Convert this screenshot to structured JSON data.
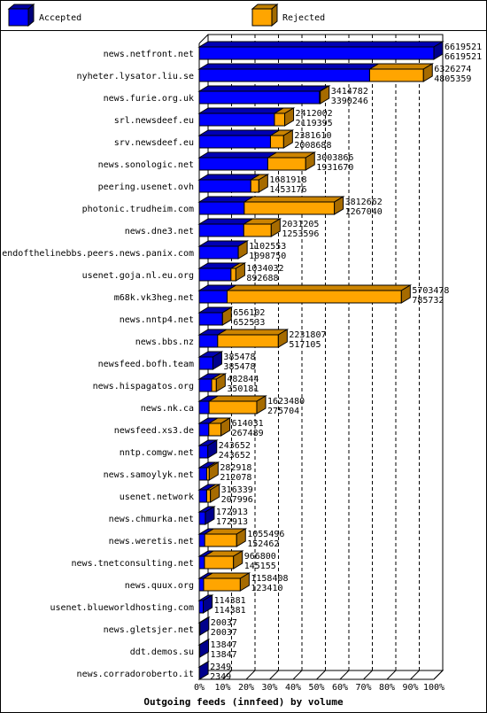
{
  "chart_data": {
    "type": "bar",
    "orientation": "horizontal",
    "stacked": true,
    "title": "Outgoing feeds (innfeed) by volume",
    "legend": [
      {
        "name": "Accepted",
        "color": "#0000ff"
      },
      {
        "name": "Rejected",
        "color": "#ffa500"
      }
    ],
    "x_ticks": [
      "0%",
      "10%",
      "20%",
      "30%",
      "40%",
      "50%",
      "60%",
      "70%",
      "80%",
      "90%",
      "100%"
    ],
    "xlim": [
      0,
      6619521
    ],
    "grid": true,
    "categories": [
      {
        "name": "news.netfront.net",
        "offered": 6619521,
        "accepted": 6619521
      },
      {
        "name": "nyheter.lysator.liu.se",
        "offered": 6326274,
        "accepted": 4805359
      },
      {
        "name": "news.furie.org.uk",
        "offered": 3414782,
        "accepted": 3390246
      },
      {
        "name": "srl.newsdeef.eu",
        "offered": 2412002,
        "accepted": 2119395
      },
      {
        "name": "srv.newsdeef.eu",
        "offered": 2381610,
        "accepted": 2008688
      },
      {
        "name": "news.sonologic.net",
        "offered": 3003866,
        "accepted": 1931670
      },
      {
        "name": "peering.usenet.ovh",
        "offered": 1681918,
        "accepted": 1453176
      },
      {
        "name": "photonic.trudheim.com",
        "offered": 3812662,
        "accepted": 1267040
      },
      {
        "name": "news.dne3.net",
        "offered": 2031205,
        "accepted": 1253596
      },
      {
        "name": "endofthelinebbs.peers.news.panix.com",
        "offered": 1102553,
        "accepted": 1098750
      },
      {
        "name": "usenet.goja.nl.eu.org",
        "offered": 1034032,
        "accepted": 892688
      },
      {
        "name": "m68k.vk3heg.net",
        "offered": 5703478,
        "accepted": 785732
      },
      {
        "name": "news.nntp4.net",
        "offered": 656102,
        "accepted": 652533
      },
      {
        "name": "news.bbs.nz",
        "offered": 2231807,
        "accepted": 517105
      },
      {
        "name": "newsfeed.bofh.team",
        "offered": 385478,
        "accepted": 385478
      },
      {
        "name": "news.hispagatos.org",
        "offered": 482844,
        "accepted": 350181
      },
      {
        "name": "news.nk.ca",
        "offered": 1623480,
        "accepted": 275704
      },
      {
        "name": "newsfeed.xs3.de",
        "offered": 614031,
        "accepted": 267489
      },
      {
        "name": "nntp.comgw.net",
        "offered": 243652,
        "accepted": 243652
      },
      {
        "name": "news.samoylyk.net",
        "offered": 282918,
        "accepted": 212078
      },
      {
        "name": "usenet.network",
        "offered": 316339,
        "accepted": 207996
      },
      {
        "name": "news.chmurka.net",
        "offered": 172913,
        "accepted": 172913
      },
      {
        "name": "news.weretis.net",
        "offered": 1055496,
        "accepted": 152462
      },
      {
        "name": "news.tnetconsulting.net",
        "offered": 966800,
        "accepted": 145155
      },
      {
        "name": "news.quux.org",
        "offered": 1158408,
        "accepted": 123410
      },
      {
        "name": "usenet.blueworldhosting.com",
        "offered": 114381,
        "accepted": 114381
      },
      {
        "name": "news.gletsjer.net",
        "offered": 20037,
        "accepted": 20037
      },
      {
        "name": "ddt.demos.su",
        "offered": 13847,
        "accepted": 13847
      },
      {
        "name": "news.corradoroberto.it",
        "offered": 2349,
        "accepted": 2349
      }
    ]
  }
}
